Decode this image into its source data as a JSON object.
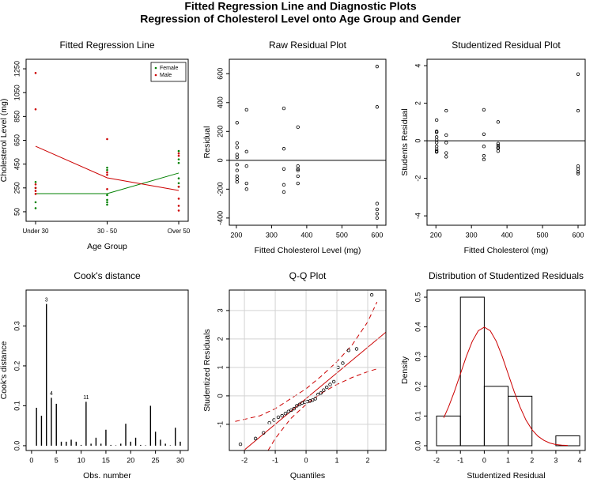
{
  "title": "Fitted Regression Line and Diagnostic Plots",
  "subtitle": "Regression of Cholesterol Level onto Age Group and Gender",
  "chart_data": [
    {
      "type": "line",
      "title": "Fitted Regression Line",
      "x_label": "Age Group",
      "y_label": "Cholesterol Level (mg)",
      "categories": [
        "Under 30",
        "30 - 50",
        "Over 50"
      ],
      "ylim": [
        -30,
        1330
      ],
      "yticks": [
        50,
        250,
        450,
        650,
        850,
        1050,
        1250
      ],
      "legend": "topright",
      "series": [
        {
          "name": "Female",
          "color": "#008000",
          "values": [
            202,
            202,
            375
          ],
          "points": [
            [
              300,
              250,
              130,
              80
            ],
            [
              420,
              400,
              190,
              150,
              130,
              110
            ],
            [
              560,
              490,
              460,
              330,
              290,
              260
            ]
          ]
        },
        {
          "name": "Male",
          "color": "#cc0000",
          "values": [
            600,
            335,
            229
          ],
          "points": [
            [
              1215,
              910,
              280,
              250,
              225,
              200
            ],
            [
              660,
              380,
              360,
              240
            ],
            [
              540,
              520,
              260,
              160,
              100,
              60
            ]
          ]
        }
      ]
    },
    {
      "type": "scatter",
      "title": "Raw Residual Plot",
      "x_label": "Fitted Cholesterol Level (mg)",
      "y_label": "Residual",
      "xlim": [
        180,
        625
      ],
      "ylim": [
        -450,
        700
      ],
      "xticks": [
        200,
        300,
        400,
        500,
        600
      ],
      "yticks": [
        -400,
        -200,
        0,
        200,
        400,
        600
      ],
      "hline": 0,
      "x": [
        202,
        202,
        202,
        202,
        202,
        202,
        202,
        202,
        202,
        202,
        229,
        229,
        229,
        229,
        229,
        335,
        335,
        335,
        335,
        335,
        375,
        375,
        375,
        375,
        375,
        375,
        600,
        600,
        600,
        600,
        600,
        600
      ],
      "values": [
        260,
        120,
        90,
        40,
        20,
        -30,
        -70,
        -110,
        -130,
        -150,
        350,
        60,
        -40,
        -160,
        -200,
        360,
        80,
        -60,
        -170,
        -220,
        230,
        -40,
        -60,
        -70,
        -110,
        -160,
        650,
        370,
        -300,
        -340,
        -370,
        -400
      ]
    },
    {
      "type": "scatter",
      "title": "Studentized Residual Plot",
      "x_label": "Fitted Cholesterol (mg)",
      "y_label": "Students Residual",
      "xlim": [
        175,
        620
      ],
      "ylim": [
        -4.5,
        4.34
      ],
      "xticks": [
        200,
        300,
        400,
        500,
        600
      ],
      "yticks": [
        -4,
        -2,
        0,
        2,
        4
      ],
      "hline": 0,
      "x": [
        202,
        202,
        202,
        202,
        202,
        202,
        202,
        202,
        202,
        202,
        229,
        229,
        229,
        229,
        229,
        335,
        335,
        335,
        335,
        335,
        375,
        375,
        375,
        375,
        375,
        375,
        600,
        600,
        600,
        600,
        600,
        600
      ],
      "values": [
        1.1,
        0.5,
        0.45,
        0.2,
        0.05,
        -0.1,
        -0.3,
        -0.45,
        -0.55,
        -0.6,
        1.6,
        0.3,
        -0.1,
        -0.65,
        -0.85,
        1.65,
        0.35,
        -0.3,
        -0.8,
        -1.0,
        1.0,
        -0.15,
        -0.25,
        -0.35,
        -0.4,
        -0.55,
        3.55,
        1.6,
        -1.35,
        -1.5,
        -1.65,
        -1.75
      ]
    },
    {
      "type": "stem",
      "title": "Cook's distance",
      "x_label": "Obs. number",
      "y_label": "Cook's distance",
      "xlim": [
        -1.1,
        31.6
      ],
      "ylim": [
        -0.012,
        0.39
      ],
      "xticks": [
        0,
        5,
        10,
        15,
        20,
        25,
        30
      ],
      "yticks": [
        {
          "value": 0,
          "label": "0.0"
        },
        0.1,
        0.2,
        0.3
      ],
      "x": [
        1,
        2,
        3,
        4,
        5,
        6,
        7,
        8,
        9,
        10,
        11,
        12,
        13,
        14,
        15,
        16,
        17,
        18,
        19,
        20,
        21,
        22,
        23,
        24,
        25,
        26,
        27,
        28,
        29,
        30
      ],
      "values": [
        0.095,
        0.075,
        0.355,
        0.12,
        0.105,
        0.01,
        0.01,
        0.015,
        0.01,
        0.002,
        0.11,
        0.005,
        0.02,
        0.005,
        0.04,
        0.002,
        0.001,
        0.005,
        0.055,
        0.01,
        0.02,
        0.002,
        0.001,
        0.1,
        0.035,
        0.015,
        0.005,
        0.001,
        0.045,
        0.01
      ],
      "labels": [
        3,
        4,
        11
      ]
    },
    {
      "type": "qq",
      "title": "Q-Q Plot",
      "x_label": "Quantiles",
      "y_label": "Studentized Residuals",
      "xlim": [
        -2.49,
        2.59
      ],
      "ylim": [
        -1.92,
        3.72
      ],
      "xticks": [
        -2,
        -1,
        0,
        1,
        2
      ],
      "yticks": [
        -1,
        0,
        1,
        2,
        3
      ],
      "grid": true,
      "x": [
        -2.13,
        -1.64,
        -1.38,
        -1.19,
        -1.04,
        -0.9,
        -0.78,
        -0.67,
        -0.57,
        -0.48,
        -0.39,
        -0.3,
        -0.21,
        -0.13,
        -0.04,
        0.04,
        0.13,
        0.21,
        0.3,
        0.39,
        0.48,
        0.57,
        0.67,
        0.78,
        0.9,
        1.04,
        1.19,
        1.38,
        1.64,
        2.13
      ],
      "values": [
        -1.7,
        -1.5,
        -1.3,
        -0.95,
        -0.85,
        -0.75,
        -0.7,
        -0.62,
        -0.55,
        -0.5,
        -0.45,
        -0.35,
        -0.3,
        -0.25,
        -0.22,
        -0.2,
        -0.18,
        -0.15,
        -0.1,
        0.05,
        0.1,
        0.2,
        0.3,
        0.4,
        0.5,
        1.0,
        1.15,
        1.6,
        1.65,
        3.55
      ],
      "line": {
        "x": [
          -2.5,
          2.6
        ],
        "y": [
          -2.35,
          2.25
        ]
      },
      "envelope_upper": {
        "x": [
          -2.3,
          -1.5,
          -1,
          -0.5,
          0,
          0.5,
          1,
          1.5,
          2,
          2.3
        ],
        "y": [
          -0.9,
          -0.7,
          -0.45,
          -0.1,
          0.25,
          0.7,
          1.2,
          1.8,
          2.6,
          3.3
        ]
      },
      "envelope_lower": {
        "x": [
          -1.5,
          -1,
          -0.5,
          0,
          0.5,
          1,
          1.5,
          2,
          2.3
        ],
        "y": [
          -2.4,
          -1.5,
          -0.8,
          -0.3,
          0.1,
          0.4,
          0.65,
          0.85,
          0.95
        ]
      }
    },
    {
      "type": "histogram",
      "title": "Distribution of Studentized Residuals",
      "x_label": "Studentized Residual",
      "y_label": "Density",
      "xlim": [
        -2.4,
        4.23
      ],
      "ylim": [
        -0.016,
        0.524
      ],
      "xticks": [
        -2,
        -1,
        0,
        1,
        2,
        3,
        4
      ],
      "yticks": [
        {
          "value": 0,
          "label": "0.0"
        },
        0.1,
        0.2,
        0.3,
        0.4,
        0.5
      ],
      "bins": [
        -2,
        -1,
        0,
        1,
        2,
        3,
        4
      ],
      "values": [
        0.1,
        0.5,
        0.2,
        0.1667,
        0,
        0.0333
      ],
      "density": {
        "x": [
          -1.7,
          -1.5,
          -1.25,
          -1,
          -0.75,
          -0.5,
          -0.25,
          0,
          0.25,
          0.5,
          0.75,
          1,
          1.25,
          1.5,
          1.75,
          2,
          2.25,
          2.5,
          2.75,
          3,
          3.25,
          3.5
        ],
        "y": [
          0.094,
          0.13,
          0.183,
          0.242,
          0.301,
          0.352,
          0.387,
          0.399,
          0.387,
          0.352,
          0.301,
          0.242,
          0.183,
          0.13,
          0.086,
          0.054,
          0.032,
          0.018,
          0.009,
          0.004,
          0.002,
          0.001
        ]
      }
    }
  ]
}
